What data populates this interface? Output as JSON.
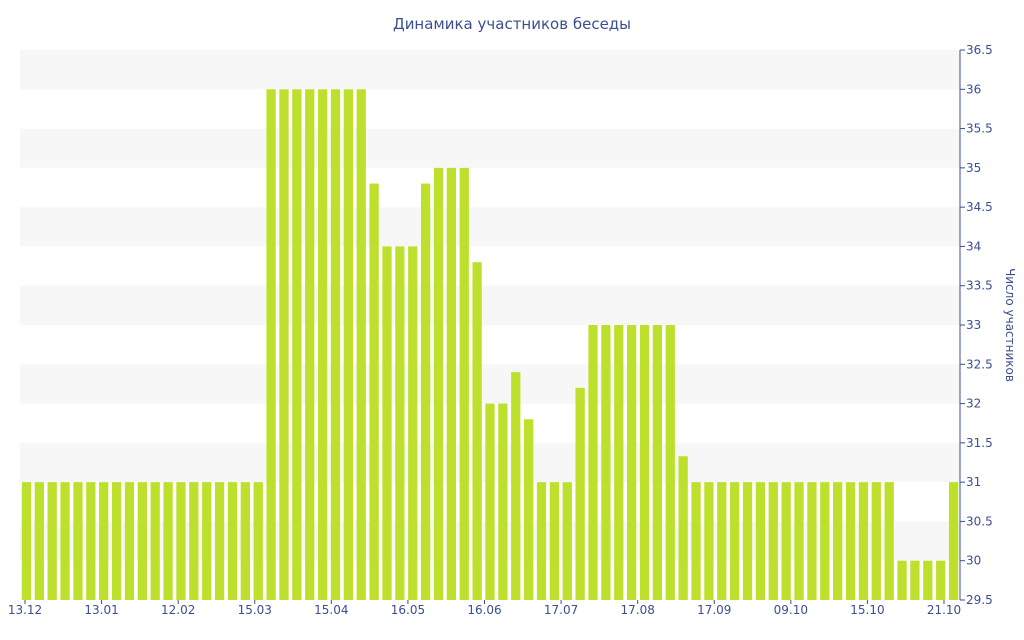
{
  "chart_data": {
    "type": "bar",
    "title": "Динамика участников беседы",
    "ylabel": "Число участников",
    "ylim": [
      29.5,
      36.5
    ],
    "yticks": [
      "29.5",
      "30",
      "30.5",
      "31",
      "31.5",
      "32",
      "32.5",
      "33",
      "33.5",
      "34",
      "34.5",
      "35",
      "35.5",
      "36",
      "36.5"
    ],
    "xtick_labels": [
      "13.12",
      "13.01",
      "12.02",
      "15.03",
      "15.04",
      "16.05",
      "16.06",
      "17.07",
      "17.08",
      "17.09",
      "09.10",
      "15.10",
      "21.10"
    ],
    "values": [
      31,
      31,
      31,
      31,
      31,
      31,
      31,
      31,
      31,
      31,
      31,
      31,
      31,
      31,
      31,
      31,
      31,
      31,
      31,
      36,
      36,
      36,
      36,
      36,
      36,
      36,
      36,
      34.8,
      34,
      34,
      34,
      34.8,
      35,
      35,
      35,
      33.8,
      32,
      32,
      32.4,
      31.8,
      31,
      31,
      31,
      32.2,
      33,
      33,
      33,
      33,
      33,
      33,
      33,
      31.33,
      31,
      31,
      31,
      31,
      31,
      31,
      31,
      31,
      31,
      31,
      31,
      31,
      31,
      31,
      31,
      31,
      30,
      30,
      30,
      30,
      31
    ],
    "grid": "horizontal bands",
    "bar_color": "#bde02c",
    "band_color": "#f7f7f7",
    "text_color": "#3a4f8f"
  }
}
